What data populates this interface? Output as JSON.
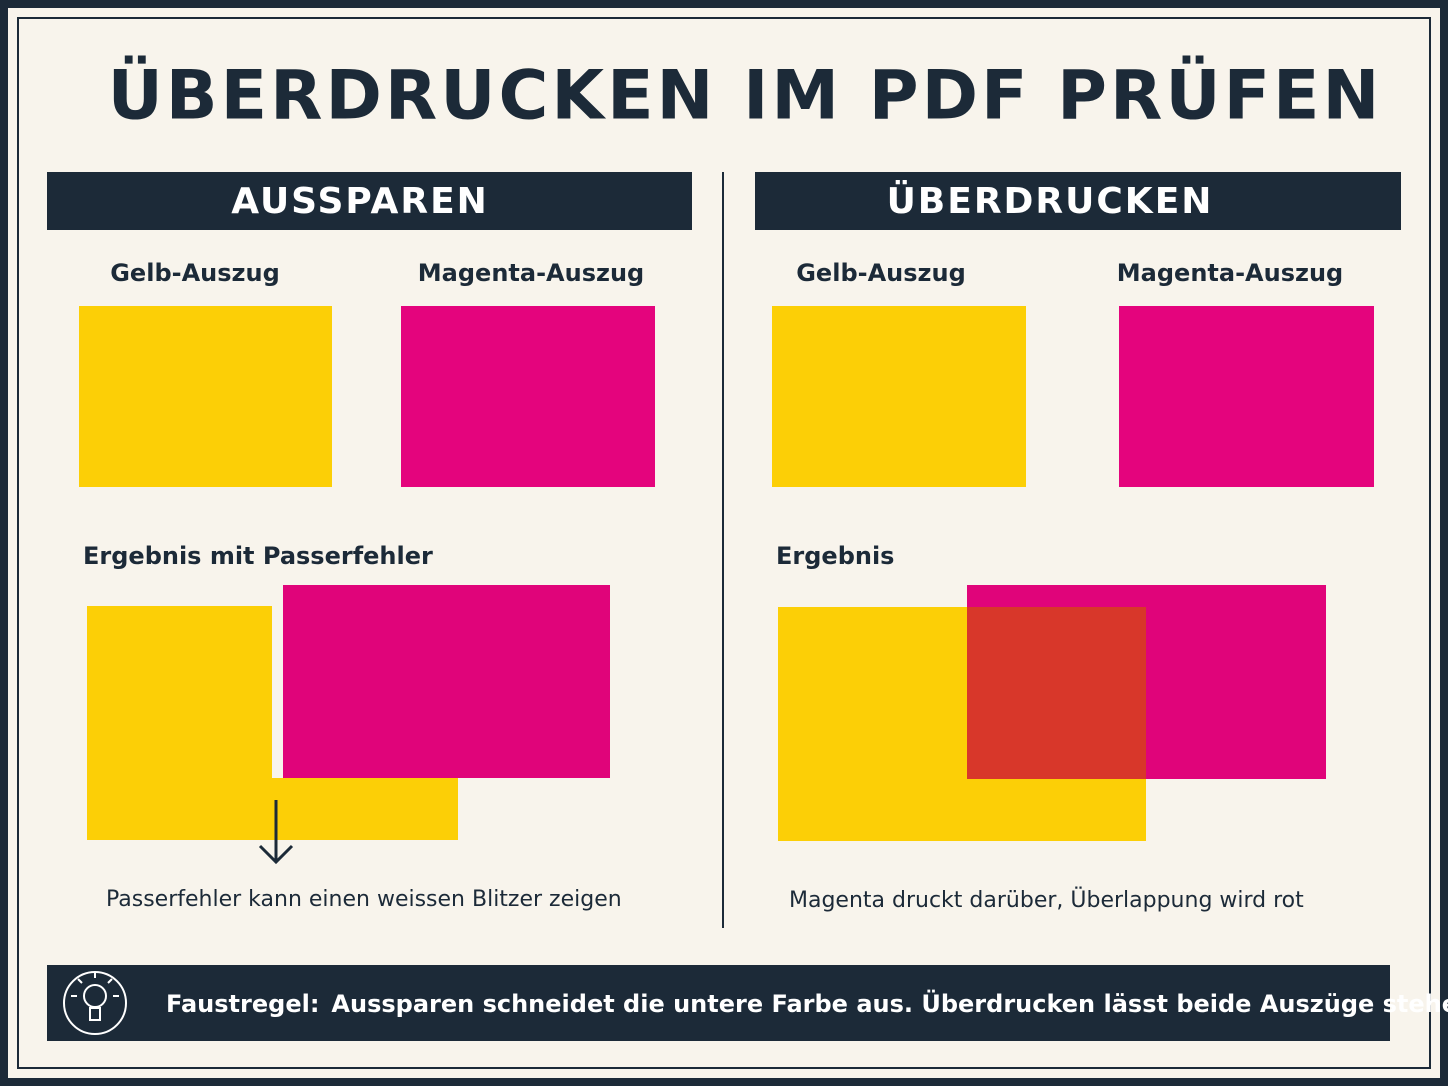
{
  "title": "ÜBERDRUCKEN IM PDF PRÜFEN",
  "panels": [
    {
      "header": "AUSSPAREN",
      "labels": [
        "Gelb-Auszug",
        "Magenta-Auszug"
      ],
      "result_label": "Ergebnis mit Passerfehler",
      "note": "Passerfehler kann einen weissen Blitzer zeigen"
    },
    {
      "header": "ÜBERDRUCKEN",
      "labels": [
        "Gelb-Auszug",
        "Magenta-Auszug"
      ],
      "result_label": "Ergebnis",
      "note": "Magenta druckt darüber, Überlappung wird rot"
    }
  ],
  "footer": {
    "label": "Faustregel:",
    "text": "Aussparen schneidet die untere Farbe aus. Überdrucken lässt beide Auszüge stehen."
  }
}
